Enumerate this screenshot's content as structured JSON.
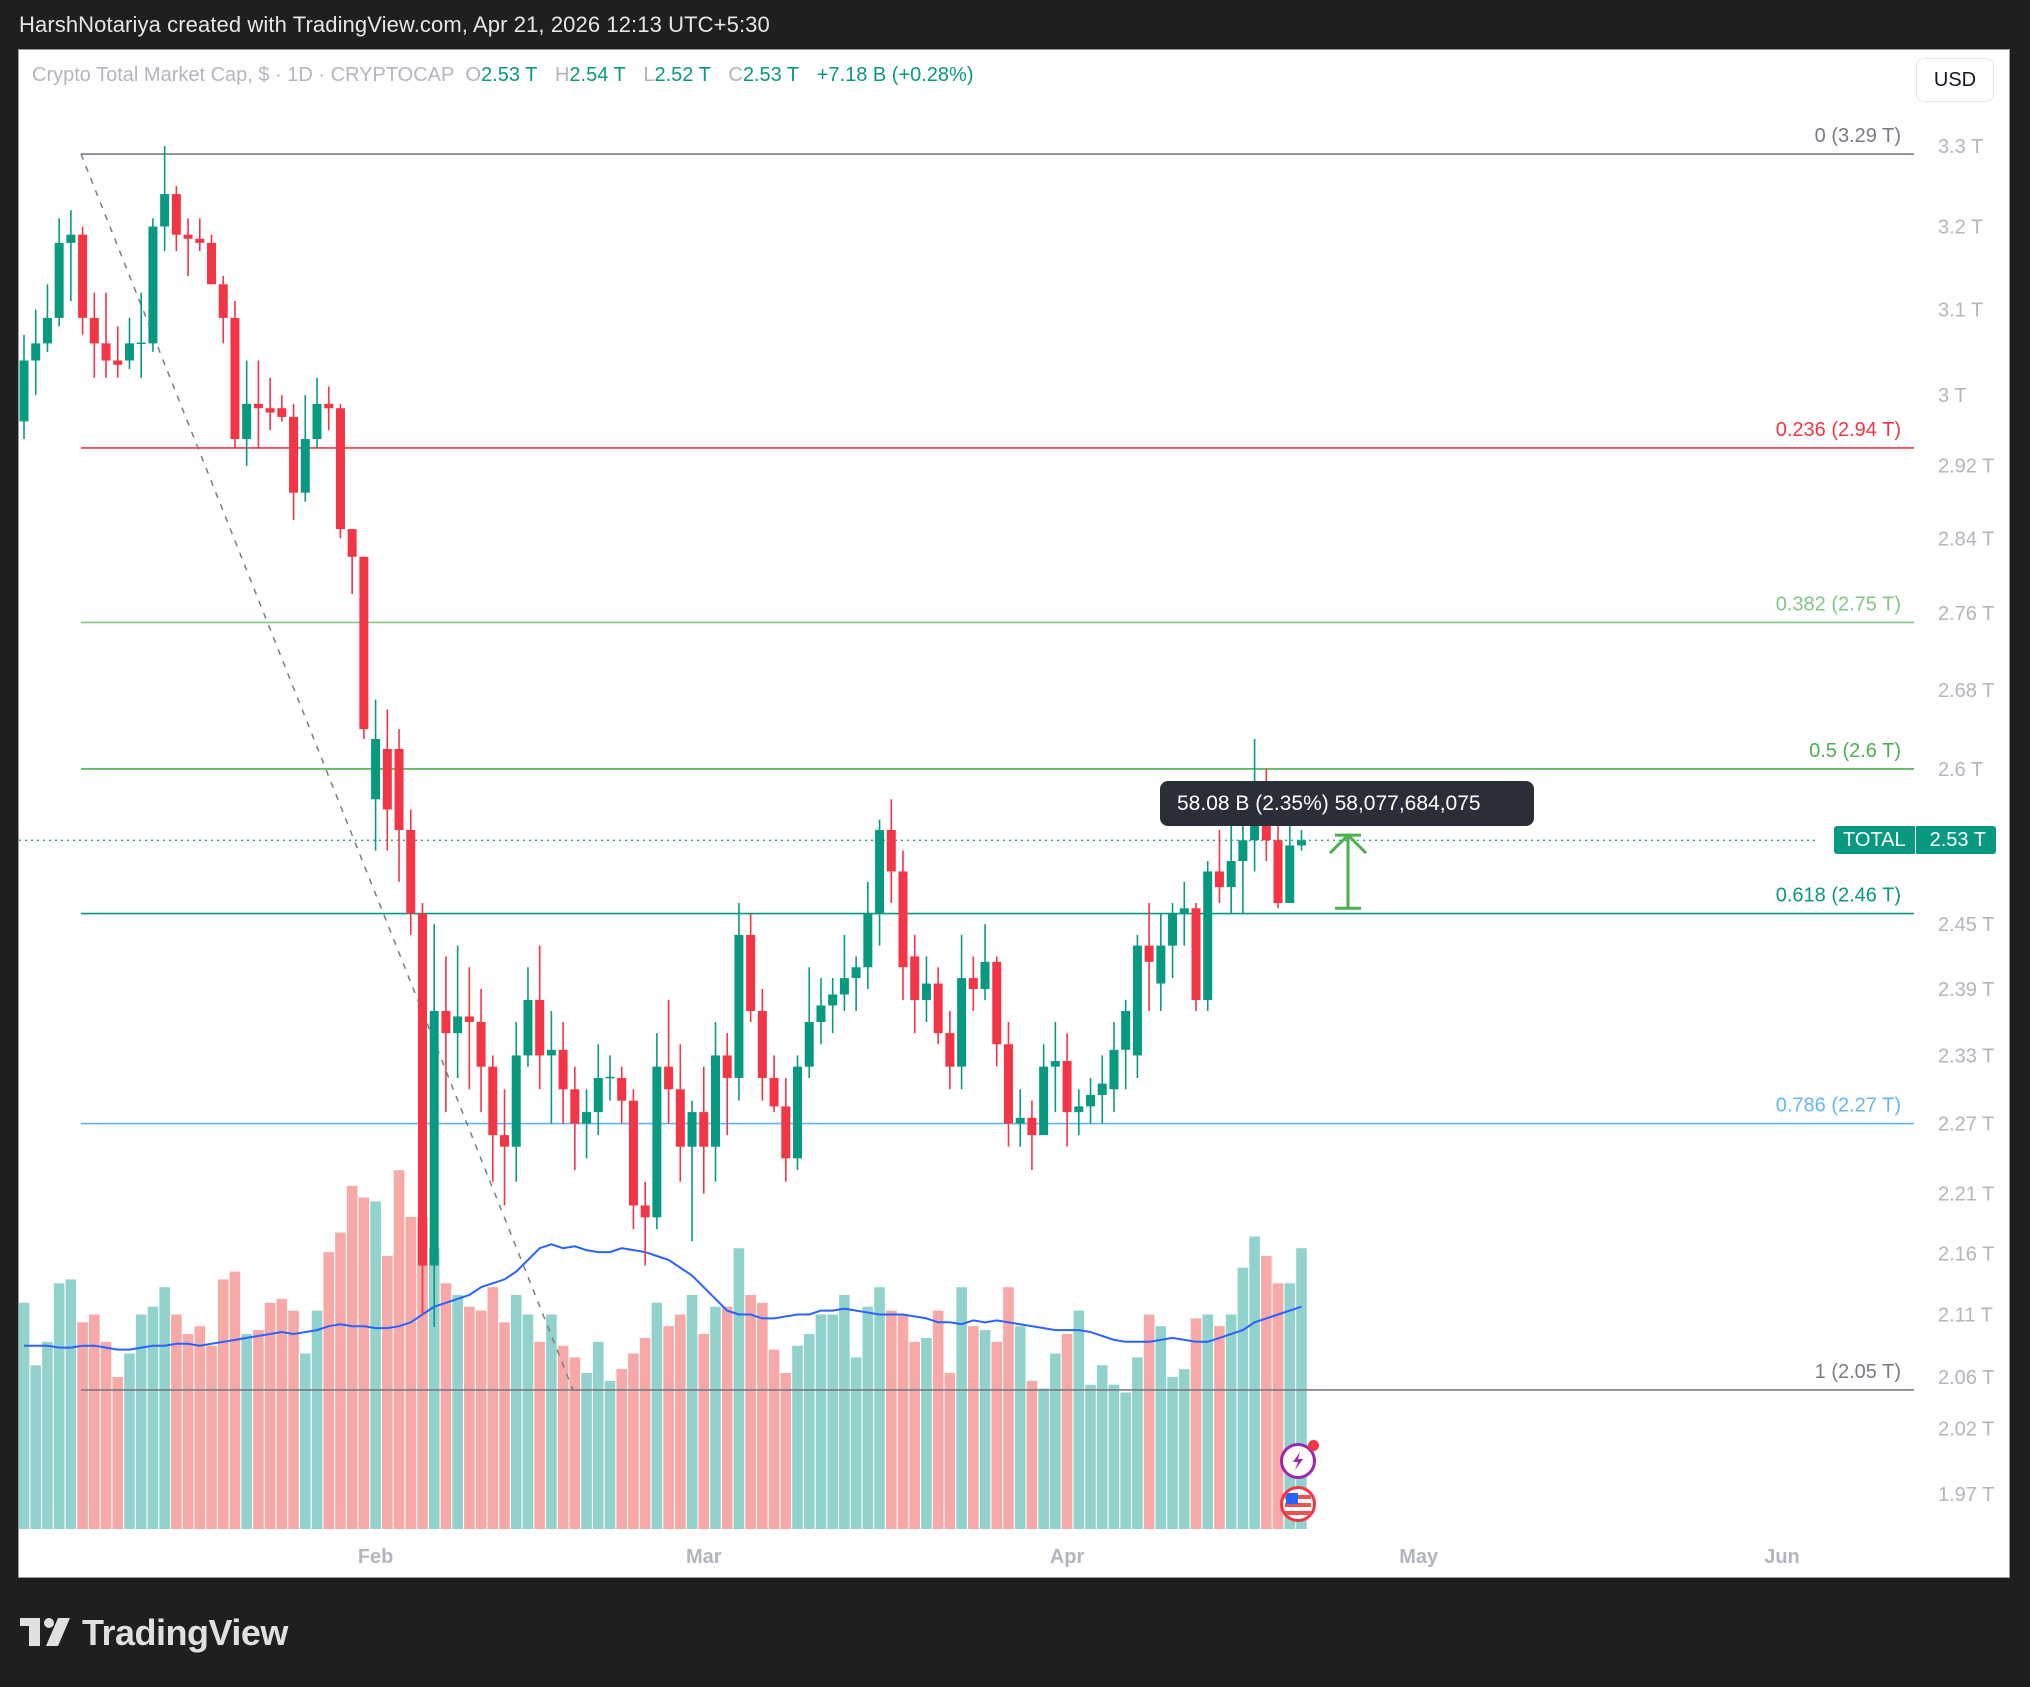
{
  "credit": "HarshNotariya created with TradingView.com, Apr 21, 2026 12:13 UTC+5:30",
  "legend": {
    "symbol": "Crypto Total Market Cap, $ · 1D · CRYPTOCAP",
    "o_label": "O",
    "o_value": "2.53 T",
    "h_label": "H",
    "h_value": "2.54 T",
    "l_label": "L",
    "l_value": "2.52 T",
    "c_label": "C",
    "c_value": "2.53 T",
    "change": "+7.18 B (+0.28%)"
  },
  "currency_button": "USD",
  "price_tag": {
    "label": "TOTAL",
    "value": "2.53 T"
  },
  "tooltip": "58.08 B (2.35%) 58,077,684,075",
  "footer": {
    "brand": "TradingView"
  },
  "colors": {
    "up": "#089981",
    "down": "#f23645",
    "vol_up": "#92d2cc",
    "vol_down": "#f7a9a7",
    "ma": "#2962ff",
    "fib0": "#787b86",
    "fib236": "#f23645",
    "fib382": "#81c784",
    "fib5": "#4caf50",
    "fib618": "#089981",
    "fib786": "#64b5f6",
    "fib1": "#787b86",
    "axis_text": "#b2b5be"
  },
  "chart_data": {
    "type": "candlestick",
    "title": "Crypto Total Market Cap, $ · 1D · CRYPTOCAP",
    "xlabel": "",
    "ylabel": "USD",
    "scale": "log",
    "ylim": [
      1.95,
      3.34
    ],
    "y_ticks": [
      "3.3 T",
      "3.2 T",
      "3.1 T",
      "3 T",
      "2.92 T",
      "2.84 T",
      "2.76 T",
      "2.68 T",
      "2.6 T",
      "2.45 T",
      "2.39 T",
      "2.33 T",
      "2.27 T",
      "2.21 T",
      "2.16 T",
      "2.11 T",
      "2.06 T",
      "2.02 T",
      "1.97 T"
    ],
    "y_tick_values": [
      3.3,
      3.2,
      3.1,
      3.0,
      2.92,
      2.84,
      2.76,
      2.68,
      2.6,
      2.45,
      2.39,
      2.33,
      2.27,
      2.21,
      2.16,
      2.11,
      2.06,
      2.02,
      1.97
    ],
    "x_ticks": [
      {
        "label": "Feb",
        "index": 30
      },
      {
        "label": "Mar",
        "index": 58
      },
      {
        "label": "Apr",
        "index": 89
      },
      {
        "label": "May",
        "index": 119
      },
      {
        "label": "Jun",
        "index": 150
      }
    ],
    "last_price": 2.53,
    "fibonacci": [
      {
        "level": "0",
        "price": 3.29,
        "label": "0 (3.29 T)",
        "color": "#787b86"
      },
      {
        "level": "0.236",
        "price": 2.94,
        "label": "0.236 (2.94 T)",
        "color": "#f23645"
      },
      {
        "level": "0.382",
        "price": 2.75,
        "label": "0.382 (2.75 T)",
        "color": "#81c784"
      },
      {
        "level": "0.5",
        "price": 2.6,
        "label": "0.5 (2.6 T)",
        "color": "#4caf50"
      },
      {
        "level": "0.618",
        "price": 2.46,
        "label": "0.618 (2.46 T)",
        "color": "#089981"
      },
      {
        "level": "0.786",
        "price": 2.27,
        "label": "0.786 (2.27 T)",
        "color": "#64b5f6"
      },
      {
        "level": "1",
        "price": 2.05,
        "label": "1 (2.05 T)",
        "color": "#787b86"
      }
    ],
    "trendline": {
      "from": {
        "index": 5,
        "price": 3.29
      },
      "to": {
        "index": 47,
        "price": 2.05
      },
      "style": "dashed"
    },
    "annotation_arrow": {
      "index": 114,
      "from": 2.465,
      "to": 2.535,
      "color": "#4caf50"
    },
    "candles": [
      [
        2.97,
        3.04,
        3.07,
        2.95
      ],
      [
        3.04,
        3.06,
        3.1,
        3.0
      ],
      [
        3.06,
        3.09,
        3.13,
        3.05
      ],
      [
        3.09,
        3.18,
        3.21,
        3.08
      ],
      [
        3.18,
        3.19,
        3.22,
        3.11
      ],
      [
        3.19,
        3.09,
        3.2,
        3.07
      ],
      [
        3.09,
        3.06,
        3.12,
        3.02
      ],
      [
        3.06,
        3.04,
        3.12,
        3.02
      ],
      [
        3.04,
        3.035,
        3.08,
        3.02
      ],
      [
        3.04,
        3.06,
        3.09,
        3.03
      ],
      [
        3.06,
        3.061,
        3.12,
        3.02
      ],
      [
        3.06,
        3.2,
        3.21,
        3.05
      ],
      [
        3.2,
        3.24,
        3.3,
        3.17
      ],
      [
        3.24,
        3.19,
        3.25,
        3.17
      ],
      [
        3.19,
        3.185,
        3.21,
        3.14
      ],
      [
        3.185,
        3.18,
        3.21,
        3.17
      ],
      [
        3.18,
        3.13,
        3.19,
        3.13
      ],
      [
        3.13,
        3.09,
        3.14,
        3.06
      ],
      [
        3.09,
        2.95,
        3.11,
        2.94
      ],
      [
        2.95,
        2.99,
        3.04,
        2.92
      ],
      [
        2.99,
        2.985,
        3.04,
        2.94
      ],
      [
        2.985,
        2.98,
        3.02,
        2.96
      ],
      [
        2.985,
        2.975,
        3.0,
        2.97
      ],
      [
        2.975,
        2.89,
        2.99,
        2.86
      ],
      [
        2.89,
        2.95,
        3.0,
        2.88
      ],
      [
        2.95,
        2.99,
        3.02,
        2.94
      ],
      [
        2.99,
        2.985,
        3.01,
        2.96
      ],
      [
        2.985,
        2.85,
        2.99,
        2.84
      ],
      [
        2.85,
        2.82,
        2.85,
        2.78
      ],
      [
        2.82,
        2.64,
        2.82,
        2.63
      ],
      [
        2.57,
        2.63,
        2.67,
        2.52
      ],
      [
        2.62,
        2.56,
        2.66,
        2.52
      ],
      [
        2.62,
        2.54,
        2.64,
        2.49
      ],
      [
        2.54,
        2.46,
        2.56,
        2.44
      ],
      [
        2.46,
        2.15,
        2.47,
        2.11
      ],
      [
        2.15,
        2.37,
        2.45,
        2.1
      ],
      [
        2.37,
        2.35,
        2.42,
        2.28
      ],
      [
        2.35,
        2.365,
        2.43,
        2.31
      ],
      [
        2.365,
        2.36,
        2.41,
        2.3
      ],
      [
        2.36,
        2.32,
        2.39,
        2.28
      ],
      [
        2.32,
        2.26,
        2.33,
        2.22
      ],
      [
        2.26,
        2.25,
        2.3,
        2.2
      ],
      [
        2.25,
        2.33,
        2.36,
        2.22
      ],
      [
        2.33,
        2.38,
        2.41,
        2.32
      ],
      [
        2.38,
        2.33,
        2.43,
        2.3
      ],
      [
        2.33,
        2.335,
        2.37,
        2.27
      ],
      [
        2.335,
        2.3,
        2.36,
        2.27
      ],
      [
        2.3,
        2.27,
        2.32,
        2.23
      ],
      [
        2.27,
        2.28,
        2.3,
        2.24
      ],
      [
        2.28,
        2.31,
        2.34,
        2.26
      ],
      [
        2.31,
        2.311,
        2.33,
        2.29
      ],
      [
        2.31,
        2.29,
        2.32,
        2.27
      ],
      [
        2.29,
        2.2,
        2.3,
        2.18
      ],
      [
        2.2,
        2.19,
        2.22,
        2.15
      ],
      [
        2.19,
        2.32,
        2.35,
        2.18
      ],
      [
        2.32,
        2.3,
        2.38,
        2.27
      ],
      [
        2.3,
        2.25,
        2.34,
        2.22
      ],
      [
        2.25,
        2.28,
        2.29,
        2.17
      ],
      [
        2.28,
        2.25,
        2.32,
        2.21
      ],
      [
        2.25,
        2.33,
        2.36,
        2.22
      ],
      [
        2.33,
        2.31,
        2.35,
        2.26
      ],
      [
        2.31,
        2.44,
        2.47,
        2.29
      ],
      [
        2.44,
        2.37,
        2.46,
        2.36
      ],
      [
        2.37,
        2.31,
        2.39,
        2.29
      ],
      [
        2.31,
        2.285,
        2.33,
        2.28
      ],
      [
        2.285,
        2.24,
        2.31,
        2.22
      ],
      [
        2.24,
        2.32,
        2.33,
        2.23
      ],
      [
        2.32,
        2.36,
        2.41,
        2.31
      ],
      [
        2.36,
        2.375,
        2.4,
        2.34
      ],
      [
        2.375,
        2.385,
        2.4,
        2.35
      ],
      [
        2.385,
        2.4,
        2.44,
        2.37
      ],
      [
        2.4,
        2.41,
        2.42,
        2.37
      ],
      [
        2.41,
        2.46,
        2.49,
        2.39
      ],
      [
        2.46,
        2.54,
        2.55,
        2.43
      ],
      [
        2.54,
        2.5,
        2.57,
        2.47
      ],
      [
        2.5,
        2.41,
        2.52,
        2.38
      ],
      [
        2.42,
        2.38,
        2.44,
        2.35
      ],
      [
        2.38,
        2.395,
        2.42,
        2.36
      ],
      [
        2.395,
        2.35,
        2.41,
        2.34
      ],
      [
        2.35,
        2.32,
        2.37,
        2.3
      ],
      [
        2.32,
        2.4,
        2.44,
        2.3
      ],
      [
        2.4,
        2.39,
        2.42,
        2.37
      ],
      [
        2.39,
        2.415,
        2.45,
        2.38
      ],
      [
        2.415,
        2.34,
        2.42,
        2.32
      ],
      [
        2.34,
        2.27,
        2.36,
        2.25
      ],
      [
        2.27,
        2.275,
        2.3,
        2.25
      ],
      [
        2.275,
        2.26,
        2.29,
        2.23
      ],
      [
        2.26,
        2.32,
        2.34,
        2.26
      ],
      [
        2.32,
        2.325,
        2.36,
        2.28
      ],
      [
        2.325,
        2.28,
        2.35,
        2.25
      ],
      [
        2.28,
        2.285,
        2.3,
        2.26
      ],
      [
        2.285,
        2.295,
        2.31,
        2.27
      ],
      [
        2.295,
        2.305,
        2.33,
        2.27
      ],
      [
        2.3,
        2.335,
        2.36,
        2.28
      ],
      [
        2.335,
        2.37,
        2.38,
        2.3
      ],
      [
        2.33,
        2.43,
        2.44,
        2.31
      ],
      [
        2.43,
        2.415,
        2.47,
        2.37
      ],
      [
        2.395,
        2.43,
        2.46,
        2.37
      ],
      [
        2.43,
        2.46,
        2.47,
        2.4
      ],
      [
        2.46,
        2.465,
        2.49,
        2.43
      ],
      [
        2.465,
        2.38,
        2.47,
        2.37
      ],
      [
        2.38,
        2.5,
        2.51,
        2.37
      ],
      [
        2.5,
        2.485,
        2.54,
        2.47
      ],
      [
        2.485,
        2.51,
        2.55,
        2.46
      ],
      [
        2.51,
        2.53,
        2.57,
        2.46
      ],
      [
        2.53,
        2.58,
        2.63,
        2.5
      ],
      [
        2.58,
        2.53,
        2.6,
        2.51
      ],
      [
        2.53,
        2.47,
        2.545,
        2.465
      ],
      [
        2.47,
        2.525,
        2.55,
        2.47
      ],
      [
        2.525,
        2.53,
        2.54,
        2.52
      ]
    ],
    "volume": [
      58,
      42,
      48,
      63,
      64,
      53,
      55,
      48,
      39,
      45,
      55,
      57,
      62,
      55,
      50,
      52,
      47,
      64,
      66,
      50,
      51,
      58,
      59,
      56,
      45,
      56,
      71,
      76,
      88,
      85,
      84,
      70,
      92,
      80,
      80,
      72,
      63,
      60,
      57,
      56,
      62,
      53,
      60,
      55,
      48,
      55,
      47,
      44,
      40,
      48,
      38,
      41,
      45,
      49,
      58,
      52,
      55,
      60,
      50,
      57,
      57,
      72,
      60,
      58,
      46,
      40,
      47,
      50,
      55,
      55,
      60,
      44,
      57,
      62,
      56,
      55,
      48,
      49,
      56,
      40,
      62,
      52,
      51,
      48,
      62,
      52,
      38,
      36,
      45,
      50,
      56,
      37,
      42,
      37,
      35,
      44,
      55,
      52,
      39,
      41,
      54,
      55,
      52,
      55,
      67,
      75,
      70,
      63,
      63,
      72
    ],
    "volume_ma": [
      47,
      47,
      47,
      46.5,
      46.5,
      47,
      47,
      46.5,
      46,
      46,
      46.5,
      47,
      47,
      47.5,
      47.5,
      47,
      47.5,
      48,
      48.5,
      49,
      49.5,
      50,
      50.5,
      50,
      50.5,
      51,
      52,
      52.5,
      52,
      52,
      51.5,
      51.5,
      52,
      53,
      55,
      57,
      58,
      59,
      60,
      62,
      63,
      64,
      66,
      69,
      72,
      73,
      72,
      72.5,
      71.5,
      71,
      71,
      72,
      71.5,
      71,
      70,
      69,
      67,
      65,
      62,
      59,
      56,
      55,
      55,
      54,
      54,
      54.5,
      55,
      55,
      56,
      56,
      56.5,
      56,
      55.5,
      55,
      55,
      55,
      54.5,
      54,
      53,
      53,
      52.5,
      53.5,
      53,
      53.5,
      53,
      52.5,
      52,
      51.5,
      51,
      51,
      51,
      50.5,
      49.5,
      48.5,
      48,
      48,
      48,
      48.5,
      49,
      48.5,
      48,
      48,
      49,
      50,
      51,
      53,
      54,
      55,
      56,
      57
    ]
  }
}
